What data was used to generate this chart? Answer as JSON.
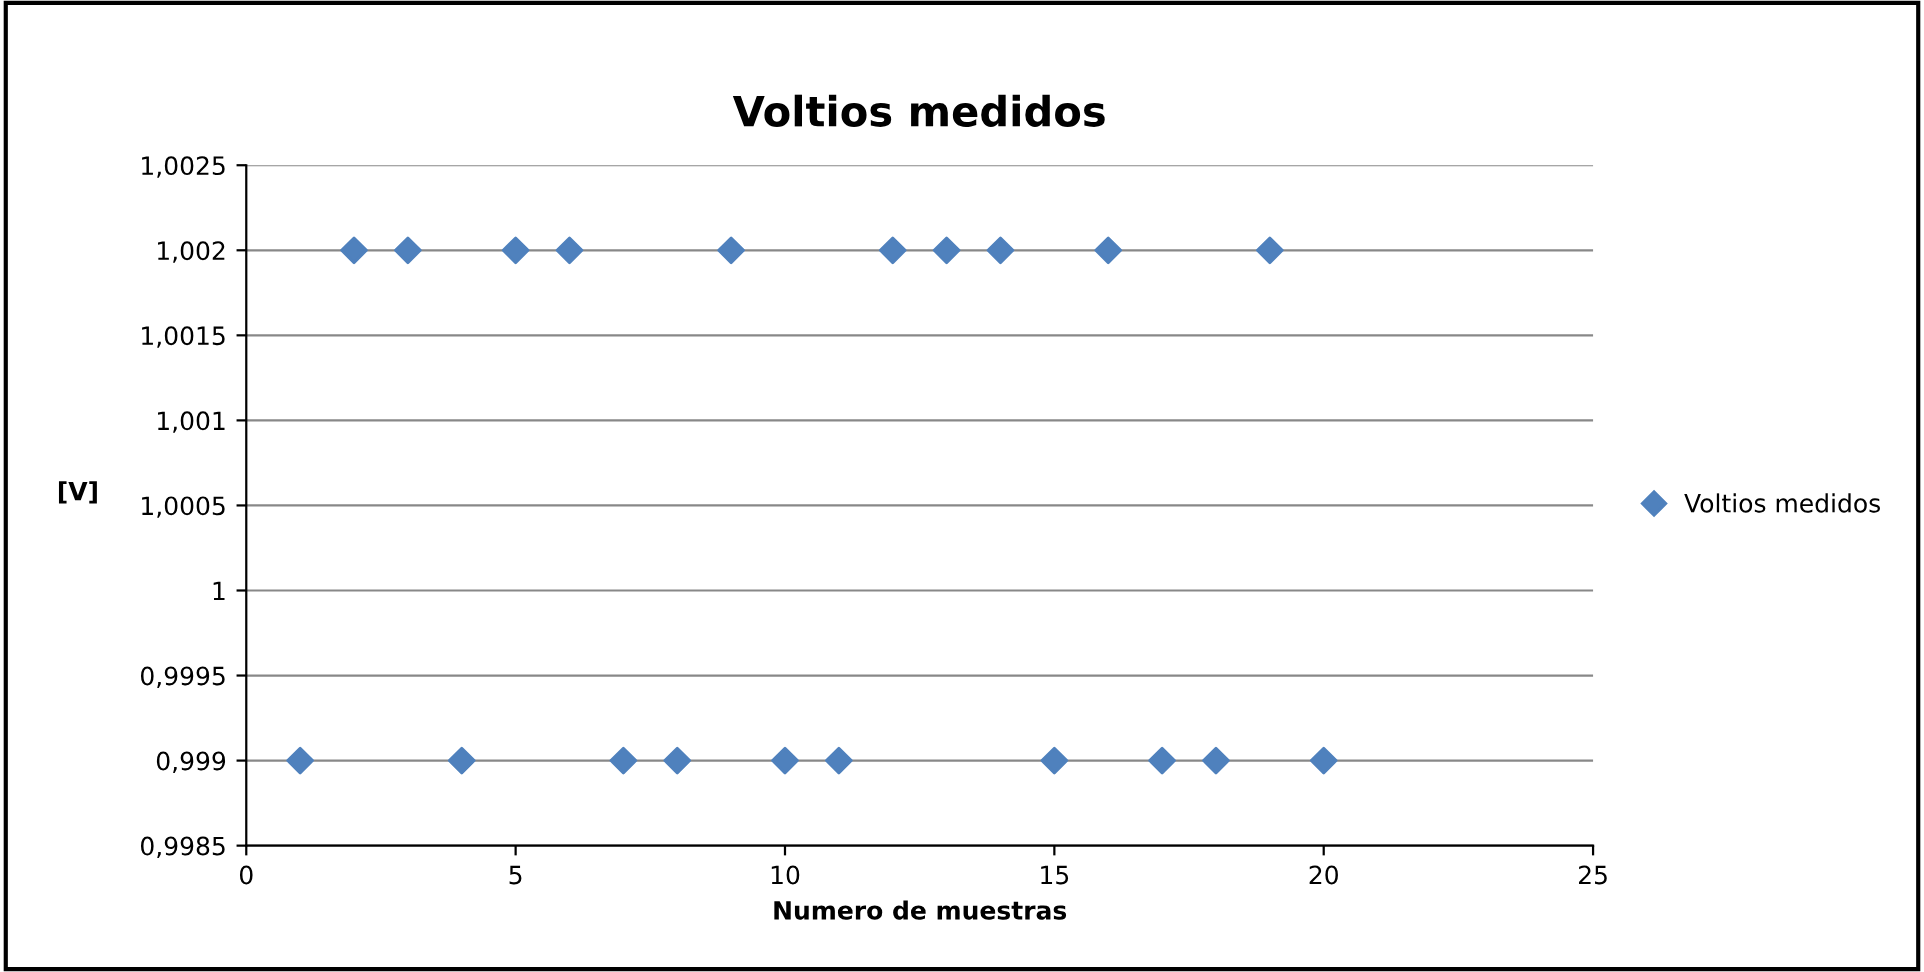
{
  "chart_data": {
    "type": "scatter",
    "title": "Voltios medidos",
    "xlabel": "Numero de muestras",
    "ylabel": "[V]",
    "series": [
      {
        "name": "Voltios medidos",
        "color": "#4f81bd",
        "x": [
          1,
          2,
          3,
          4,
          5,
          6,
          7,
          8,
          9,
          10,
          11,
          12,
          13,
          14,
          15,
          16,
          17,
          18,
          19,
          20
        ],
        "values": [
          0.999,
          1.002,
          1.002,
          0.999,
          1.002,
          1.002,
          0.999,
          0.999,
          1.002,
          0.999,
          0.999,
          1.002,
          1.002,
          1.002,
          0.999,
          1.002,
          0.999,
          0.999,
          1.002,
          0.999
        ]
      }
    ],
    "xlim": [
      0,
      25
    ],
    "xticks": [
      0,
      5,
      10,
      15,
      20,
      25
    ],
    "ylim": [
      0.9985,
      1.0025
    ],
    "yticks": [
      {
        "value": 0.9985,
        "label": "0,9985"
      },
      {
        "value": 0.999,
        "label": "0,999"
      },
      {
        "value": 0.9995,
        "label": "0,9995"
      },
      {
        "value": 1,
        "label": "1"
      },
      {
        "value": 1.0005,
        "label": "1,0005"
      },
      {
        "value": 1.001,
        "label": "1,001"
      },
      {
        "value": 1.0015,
        "label": "1,0015"
      },
      {
        "value": 1.002,
        "label": "1,002"
      },
      {
        "value": 1.0025,
        "label": "1,0025"
      }
    ],
    "grid": "y",
    "legend": "right",
    "marker": "diamond"
  }
}
